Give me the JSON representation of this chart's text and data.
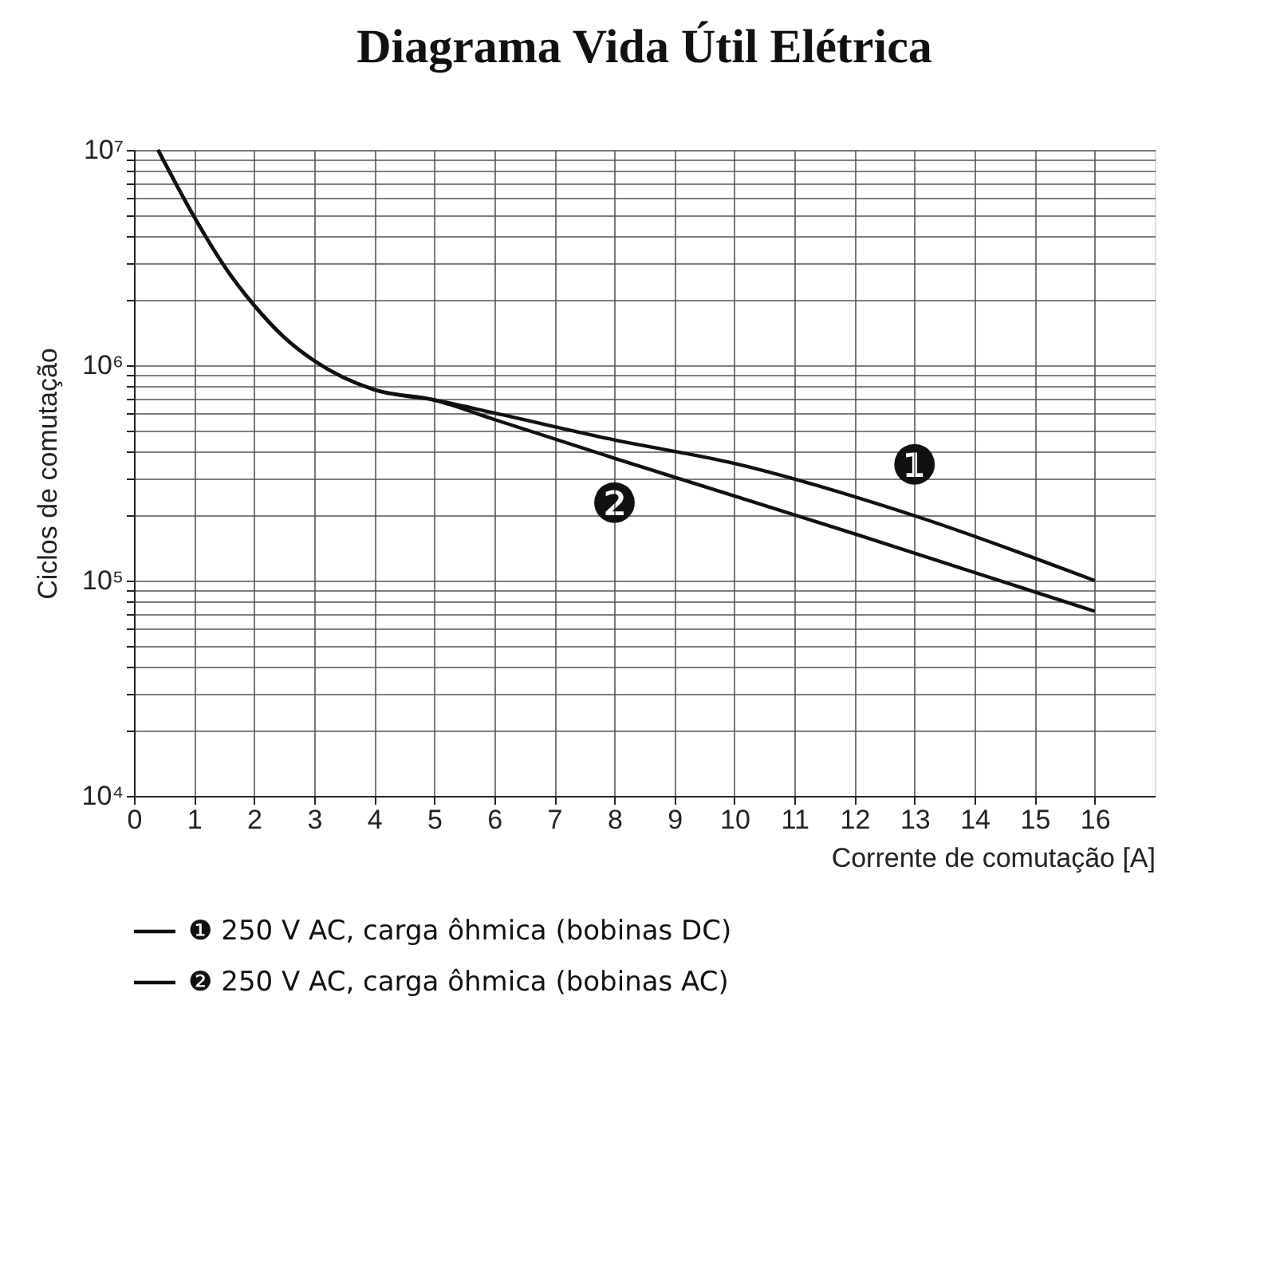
{
  "chart_data": {
    "type": "line",
    "title": "Diagrama Vida Útil Elétrica",
    "xlabel": "Corrente de comutação [A]",
    "ylabel": "Ciclos de comutação",
    "log": "y",
    "grid": true,
    "legend": "bottom",
    "line_style": "solid",
    "marker": "none",
    "xlim": [
      0,
      17
    ],
    "xticks": [
      0,
      1,
      2,
      3,
      4,
      5,
      6,
      7,
      8,
      9,
      10,
      11,
      12,
      13,
      14,
      15,
      16
    ],
    "ylim": [
      10000,
      10000000
    ],
    "yticks": [
      {
        "value": 10000,
        "label": "10⁴"
      },
      {
        "value": 20000,
        "label": null
      },
      {
        "value": 30000,
        "label": null
      },
      {
        "value": 40000,
        "label": null
      },
      {
        "value": 50000,
        "label": null
      },
      {
        "value": 60000,
        "label": null
      },
      {
        "value": 70000,
        "label": null
      },
      {
        "value": 80000,
        "label": null
      },
      {
        "value": 90000,
        "label": null
      },
      {
        "value": 100000,
        "label": "10⁵"
      },
      {
        "value": 200000,
        "label": null
      },
      {
        "value": 300000,
        "label": null
      },
      {
        "value": 400000,
        "label": null
      },
      {
        "value": 500000,
        "label": null
      },
      {
        "value": 600000,
        "label": null
      },
      {
        "value": 700000,
        "label": null
      },
      {
        "value": 800000,
        "label": null
      },
      {
        "value": 900000,
        "label": null
      },
      {
        "value": 1000000,
        "label": "10⁶"
      },
      {
        "value": 2000000,
        "label": null
      },
      {
        "value": 3000000,
        "label": null
      },
      {
        "value": 4000000,
        "label": null
      },
      {
        "value": 5000000,
        "label": null
      },
      {
        "value": 6000000,
        "label": null
      },
      {
        "value": 7000000,
        "label": null
      },
      {
        "value": 8000000,
        "label": null
      },
      {
        "value": 9000000,
        "label": null
      },
      {
        "value": 10000000,
        "label": "10⁷"
      }
    ],
    "series": [
      {
        "name": "❶ 250 V AC, carga ôhmica (bobinas DC)",
        "color": "#111111",
        "x": [
          0.4,
          1,
          1.5,
          2,
          2.5,
          3,
          4,
          5,
          6,
          8,
          10,
          13,
          16
        ],
        "values": [
          10000000,
          4900000,
          2900000,
          1900000,
          1350000,
          1050000,
          770000,
          690000,
          600000,
          450000,
          350000,
          200000,
          100000
        ]
      },
      {
        "name": "❷ 250 V AC, carga ôhmica (bobinas AC)",
        "color": "#111111",
        "x": [
          0.4,
          1,
          1.5,
          2,
          2.5,
          3,
          4,
          5,
          6,
          8,
          12,
          16
        ],
        "values": [
          10000000,
          4900000,
          2900000,
          1900000,
          1350000,
          1050000,
          770000,
          690000,
          560000,
          370000,
          165000,
          72000
        ]
      }
    ],
    "annotations": [
      {
        "text": "❶",
        "x": 13,
        "y": 200000
      },
      {
        "text": "❷",
        "x": 8,
        "y": 370000
      }
    ]
  }
}
